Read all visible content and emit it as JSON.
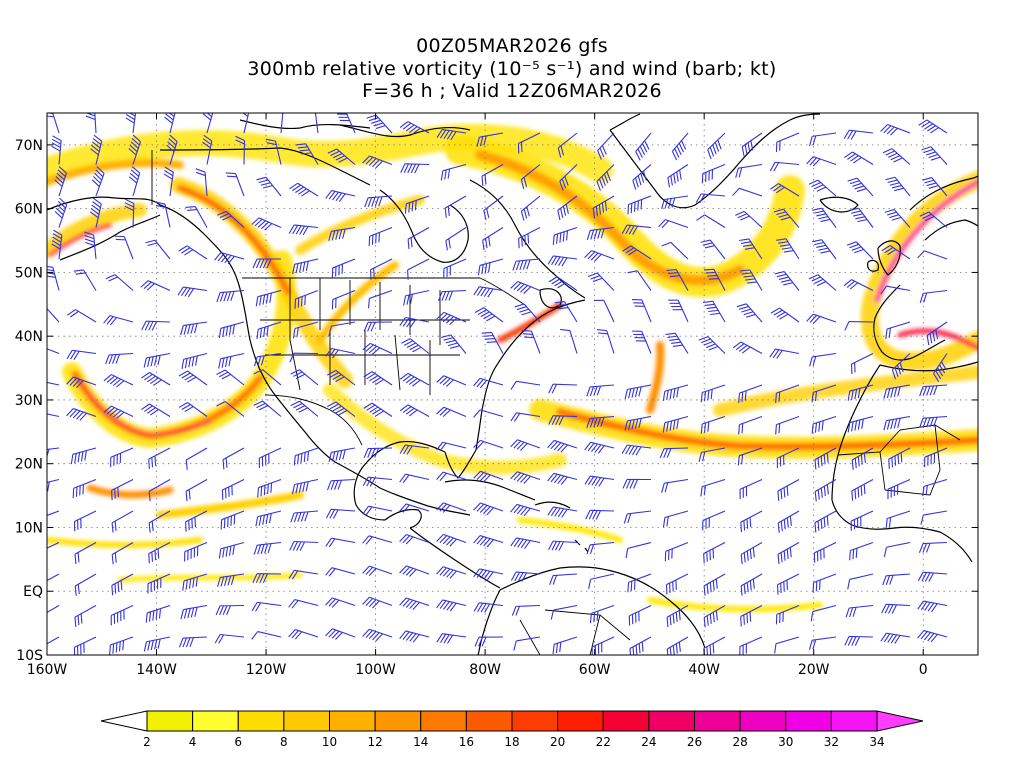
{
  "title": {
    "line1": "00Z05MAR2026 gfs",
    "line2": "300mb relative vorticity (10⁻⁵ s⁻¹) and wind (barb; kt)",
    "line3": "F=36 h ; Valid 12Z06MAR2026"
  },
  "map": {
    "lon_range": [
      -160,
      10
    ],
    "lat_range": [
      -10,
      75
    ],
    "lat_ticks": [
      {
        "value": 70,
        "label": "70N"
      },
      {
        "value": 60,
        "label": "60N"
      },
      {
        "value": 50,
        "label": "50N"
      },
      {
        "value": 40,
        "label": "40N"
      },
      {
        "value": 30,
        "label": "30N"
      },
      {
        "value": 20,
        "label": "20N"
      },
      {
        "value": 10,
        "label": "10N"
      },
      {
        "value": 0,
        "label": "EQ"
      },
      {
        "value": -10,
        "label": "10S"
      }
    ],
    "lon_ticks": [
      {
        "value": -160,
        "label": "160W"
      },
      {
        "value": -140,
        "label": "140W"
      },
      {
        "value": -120,
        "label": "120W"
      },
      {
        "value": -100,
        "label": "100W"
      },
      {
        "value": -80,
        "label": "80W"
      },
      {
        "value": -60,
        "label": "60W"
      },
      {
        "value": -40,
        "label": "40W"
      },
      {
        "value": -20,
        "label": "20W"
      },
      {
        "value": 0,
        "label": "0"
      }
    ],
    "barb_color": "#3333dd",
    "coast_color": "#000000",
    "grid": true
  },
  "colorbar": {
    "levels": [
      2,
      4,
      6,
      8,
      10,
      12,
      14,
      16,
      18,
      20,
      22,
      24,
      26,
      28,
      30,
      32,
      34
    ],
    "colors": [
      "#f0f000",
      "#ffff30",
      "#ffdc00",
      "#ffc800",
      "#ffb000",
      "#ff9600",
      "#ff7800",
      "#ff5a00",
      "#ff3c00",
      "#ff1e00",
      "#f50032",
      "#f00064",
      "#ee0096",
      "#ee00c0",
      "#f000e6",
      "#f514f5"
    ],
    "under_color": "#ffffff",
    "over_color": "#ff3cff"
  }
}
